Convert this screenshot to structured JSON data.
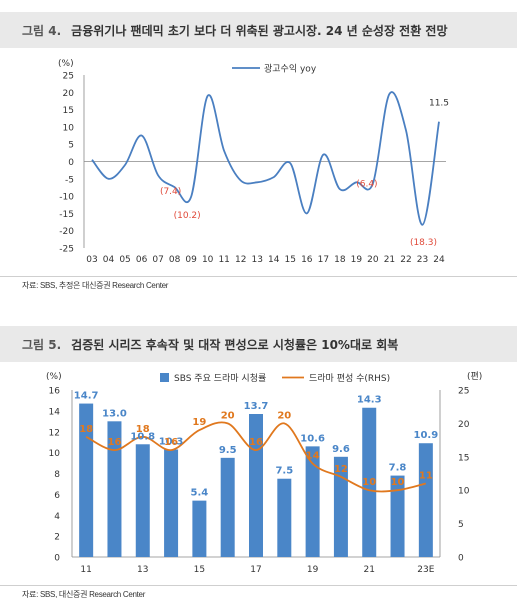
{
  "figure1": {
    "number": "그림 4.",
    "title": "금융위기나 팬데믹 초기 보다 더 위축된 광고시장. 24 년 순성장 전환 전망",
    "source": "자료: SBS, 추정은 대신증권 Research Center"
  },
  "figure2": {
    "number": "그림 5.",
    "title": "검증된 시리즈 후속작 및 대작 편성으로 시청률은 10%대로 회복",
    "source": "자료: SBS, 대신증권 Research Center"
  },
  "chart_data": [
    {
      "type": "line",
      "x": [
        "03",
        "04",
        "05",
        "06",
        "07",
        "08",
        "09",
        "10",
        "11",
        "12",
        "13",
        "14",
        "15",
        "16",
        "17",
        "18",
        "19",
        "20",
        "21",
        "22",
        "23",
        "24"
      ],
      "series": [
        {
          "name": "광고수익 yoy",
          "color": "#4a7fc1",
          "values": [
            0.5,
            -5.0,
            -1.0,
            7.5,
            -4.0,
            -7.4,
            -10.2,
            19.0,
            3.0,
            -5.5,
            -6.0,
            -4.5,
            -0.5,
            -15.0,
            2.0,
            -8.0,
            -6.0,
            -6.4,
            19.5,
            9.0,
            -18.3,
            11.5
          ]
        }
      ],
      "ylabel": "(%)",
      "ylim": [
        -25,
        25
      ],
      "yticks": [
        25,
        20,
        15,
        10,
        5,
        0,
        -5,
        -10,
        -15,
        -20,
        -25
      ],
      "annotations": [
        {
          "x": "08",
          "text": "(7.4)",
          "color": "#e04a3a"
        },
        {
          "x": "09",
          "text": "(10.2)",
          "color": "#e04a3a"
        },
        {
          "x": "20",
          "text": "(6.4)",
          "color": "#e04a3a"
        },
        {
          "x": "23",
          "text": "(18.3)",
          "color": "#e04a3a"
        },
        {
          "x": "24",
          "text": "11.5",
          "color": "#333333"
        }
      ],
      "legend": "top-center",
      "grid": false
    },
    {
      "type": "bar",
      "categories": [
        "11",
        "12",
        "13",
        "14",
        "15",
        "16",
        "17",
        "18",
        "19",
        "20",
        "21",
        "22",
        "23E"
      ],
      "xtick_labels": [
        "11",
        "",
        "13",
        "",
        "15",
        "",
        "17",
        "",
        "19",
        "",
        "21",
        "",
        "23E"
      ],
      "series": [
        {
          "name": "SBS 주요 드라마 시청률",
          "kind": "bar",
          "axis": "left",
          "color": "#4a86c8",
          "values": [
            14.7,
            13.0,
            10.8,
            10.3,
            5.4,
            9.5,
            13.7,
            7.5,
            10.6,
            9.6,
            14.3,
            7.8,
            10.9
          ],
          "labels": [
            "14.7",
            "13.0",
            "10.8",
            "10.3",
            "5.4",
            "9.5",
            "13.7",
            "7.5",
            "10.6",
            "9.6",
            "14.3",
            "7.8",
            "10.9"
          ]
        },
        {
          "name": "드라마 편성 수(RHS)",
          "kind": "line",
          "axis": "right",
          "color": "#e0781e",
          "values": [
            18,
            16,
            18,
            16,
            19,
            20,
            16,
            20,
            14,
            12,
            10,
            10,
            11
          ],
          "labels": [
            "18",
            "16",
            "18",
            "16",
            "19",
            "20",
            "16",
            "20",
            "14",
            "12",
            "10",
            "10",
            "11"
          ]
        }
      ],
      "ylabel_left": "(%)",
      "ylabel_right": "(편)",
      "ylim_left": [
        0,
        16
      ],
      "yticks_left": [
        16,
        14,
        12,
        10,
        8,
        6,
        4,
        2,
        0
      ],
      "ylim_right": [
        0,
        25
      ],
      "yticks_right": [
        25,
        20,
        15,
        10,
        5,
        0
      ],
      "legend": "top-center",
      "grid": false
    }
  ]
}
